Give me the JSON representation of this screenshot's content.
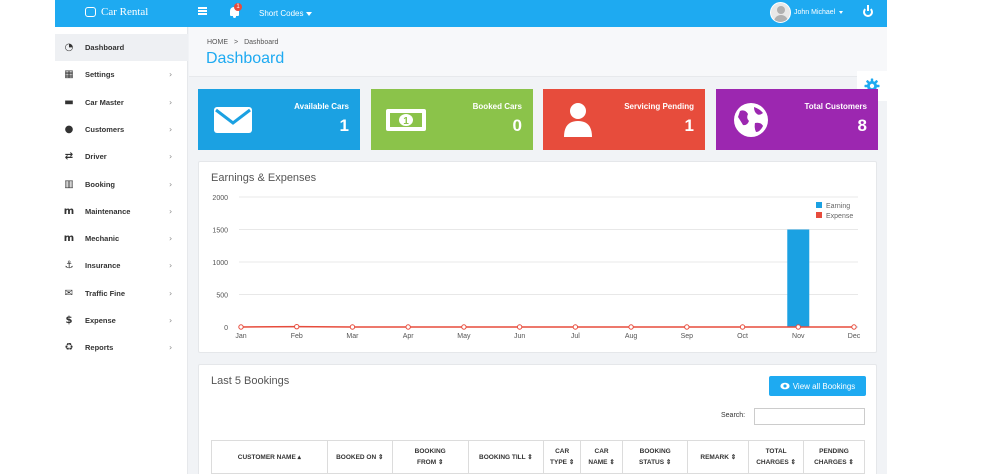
{
  "app": {
    "brand": "Car Rental",
    "short_codes": "Short Codes",
    "user_name": "John Michael",
    "notification_count": "1"
  },
  "sidebar": {
    "items": [
      {
        "label": "Dashboard",
        "icon": "dashboard-icon",
        "glyph": "◔"
      },
      {
        "label": "Settings",
        "icon": "table-icon",
        "glyph": "▦"
      },
      {
        "label": "Car Master",
        "icon": "car-icon",
        "glyph": "▬"
      },
      {
        "label": "Customers",
        "icon": "users-icon",
        "glyph": "●"
      },
      {
        "label": "Driver",
        "icon": "exchange-icon",
        "glyph": "⇄"
      },
      {
        "label": "Booking",
        "icon": "bank-icon",
        "glyph": "▥"
      },
      {
        "label": "Maintenance",
        "icon": "maintenance-icon",
        "glyph": "m"
      },
      {
        "label": "Mechanic",
        "icon": "mechanic-icon",
        "glyph": "m"
      },
      {
        "label": "Insurance",
        "icon": "anchor-icon",
        "glyph": "⚓"
      },
      {
        "label": "Traffic Fine",
        "icon": "envelope-icon",
        "glyph": "✉"
      },
      {
        "label": "Expense",
        "icon": "dollar-icon",
        "glyph": "$"
      },
      {
        "label": "Reports",
        "icon": "recycle-icon",
        "glyph": "♻"
      }
    ]
  },
  "header": {
    "breadcrumb_home": "HOME",
    "breadcrumb_sep": ">",
    "breadcrumb_current": "Dashboard",
    "title": "Dashboard"
  },
  "cards": [
    {
      "label": "Available Cars",
      "value": "1",
      "color": "#1ba1e2",
      "icon": "envelope-icon"
    },
    {
      "label": "Booked Cars",
      "value": "0",
      "color": "#8bc34a",
      "icon": "money-icon"
    },
    {
      "label": "Servicing Pending",
      "value": "1",
      "color": "#e74c3c",
      "icon": "user-icon"
    },
    {
      "label": "Total Customers",
      "value": "8",
      "color": "#9c27b0",
      "icon": "globe-icon"
    }
  ],
  "earnings": {
    "title": "Earnings & Expenses"
  },
  "chart_data": {
    "type": "bar",
    "title": "Earnings & Expenses",
    "categories": [
      "Jan",
      "Feb",
      "Mar",
      "Apr",
      "May",
      "Jun",
      "Jul",
      "Aug",
      "Sep",
      "Oct",
      "Nov",
      "Dec"
    ],
    "series": [
      {
        "name": "Earning",
        "type": "bar",
        "color": "#1ba1e2",
        "values": [
          0,
          0,
          0,
          0,
          0,
          0,
          0,
          0,
          0,
          0,
          1500,
          0
        ]
      },
      {
        "name": "Expense",
        "type": "line",
        "color": "#e74c3c",
        "values": [
          0,
          5,
          0,
          0,
          0,
          0,
          0,
          0,
          0,
          0,
          0,
          0
        ]
      }
    ],
    "ylim": [
      0,
      2000
    ],
    "yticks": [
      "0",
      "500",
      "1000",
      "1500",
      "2000"
    ],
    "legend": "top-right",
    "grid": true
  },
  "bookings": {
    "title": "Last 5 Bookings",
    "view_all": "View all Bookings",
    "search_label": "Search:",
    "columns": [
      [
        "CUSTOMER NAME ▴"
      ],
      [
        "BOOKED ON ⇕"
      ],
      [
        "BOOKING",
        "FROM ⇕"
      ],
      [
        "BOOKING TILL ⇕"
      ],
      [
        "CAR",
        "TYPE ⇕"
      ],
      [
        "CAR",
        "NAME ⇕"
      ],
      [
        "BOOKING",
        "STATUS ⇕"
      ],
      [
        "REMARK ⇕"
      ],
      [
        "TOTAL",
        "CHARGES ⇕"
      ],
      [
        "PENDING",
        "CHARGES ⇕"
      ]
    ]
  }
}
